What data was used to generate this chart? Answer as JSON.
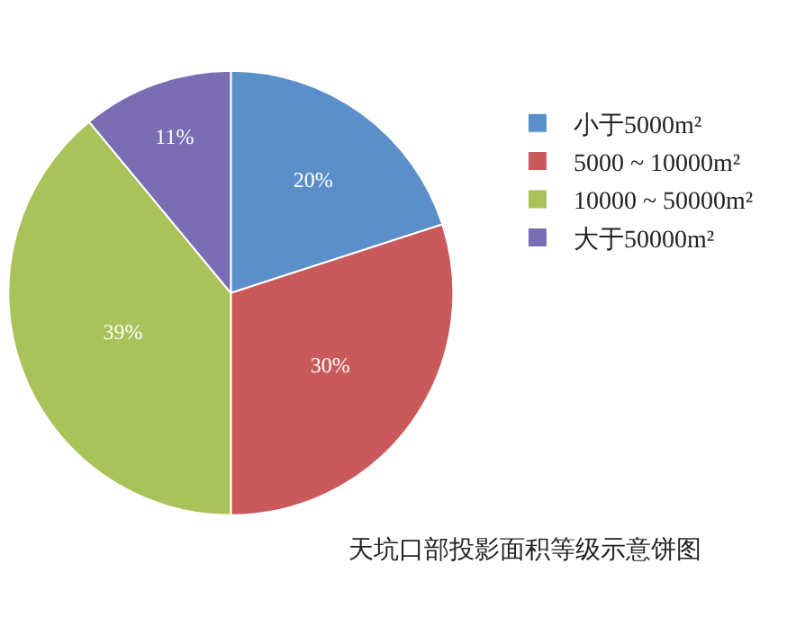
{
  "chart_data": {
    "type": "pie",
    "title": "天坑口部投影面积等级示意饼图",
    "categories": [
      "小于5000m²",
      "5000 ~ 10000m²",
      "10000 ~ 50000m²",
      "大于50000m²"
    ],
    "values": [
      20,
      30,
      39,
      11
    ],
    "value_labels": [
      "20%",
      "30%",
      "39%",
      "11%"
    ],
    "colors": [
      "#5b8fc9",
      "#c9595a",
      "#a9c25a",
      "#7b6db3"
    ],
    "legend": "right"
  }
}
